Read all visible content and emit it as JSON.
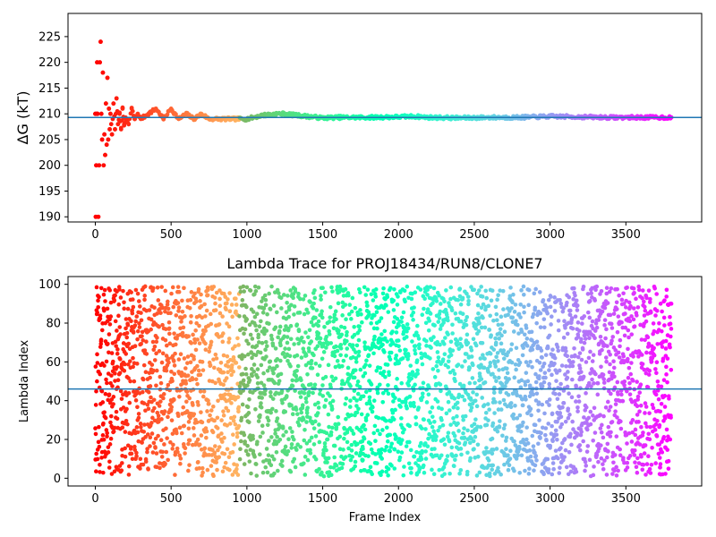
{
  "chart_data": [
    {
      "type": "scatter",
      "title": "",
      "xlabel": "",
      "ylabel": "ΔG (kT)",
      "xlim": [
        -180,
        4000
      ],
      "ylim": [
        189,
        229.5
      ],
      "xticks": [
        0,
        500,
        1000,
        1500,
        2000,
        2500,
        3000,
        3500
      ],
      "yticks": [
        190,
        195,
        200,
        205,
        210,
        215,
        220,
        225
      ],
      "reference_line": 209.3,
      "reference_line_color": "#1f77b4",
      "colormap": "rainbow (red at frame 0 → violet at last frame)",
      "series": [
        {
          "x": [
            0,
            3,
            6,
            9,
            12,
            15,
            20,
            25,
            30,
            35,
            40,
            45,
            50,
            55,
            60,
            65,
            70,
            75,
            80,
            85,
            90,
            95,
            100,
            110,
            120,
            130,
            140,
            150,
            160,
            170,
            180,
            190,
            200,
            220,
            240,
            260,
            280,
            300,
            350,
            400,
            450,
            500,
            550,
            600,
            650,
            700,
            750,
            800,
            900,
            1000,
            1100,
            1200,
            1250,
            1300,
            1400,
            1500,
            1600,
            1800,
            2000,
            2100,
            2200,
            2400,
            2600,
            2800,
            3000,
            3200,
            3400,
            3600,
            3800
          ],
          "y": [
            210,
            190,
            200,
            210,
            220,
            210,
            190,
            200,
            220,
            224,
            210,
            205,
            218,
            200,
            206,
            202,
            212,
            204,
            217,
            205,
            211,
            207,
            210,
            206,
            212,
            207,
            213,
            208,
            210,
            207,
            211,
            208,
            209,
            208,
            211,
            209,
            210,
            209,
            210,
            211,
            209,
            211,
            209,
            210,
            209,
            210,
            209,
            209,
            209,
            209,
            209.7,
            210,
            210,
            209.8,
            209.5,
            209.2,
            209.3,
            209.3,
            209.4,
            209.5,
            209.3,
            209.2,
            209.3,
            209.3,
            209.5,
            209.4,
            209.3,
            209.3,
            209.3
          ]
        }
      ]
    },
    {
      "type": "scatter",
      "title": "Lambda Trace for PROJ18434/RUN8/CLONE7",
      "xlabel": "Frame Index",
      "ylabel": "Lambda Index",
      "xlim": [
        -180,
        4000
      ],
      "ylim": [
        -4,
        104
      ],
      "xticks": [
        0,
        500,
        1000,
        1500,
        2000,
        2500,
        3000,
        3500
      ],
      "yticks": [
        0,
        20,
        40,
        60,
        80,
        100
      ],
      "reference_line": 46,
      "reference_line_color": "#1f77b4",
      "colormap": "rainbow (red at frame 0 → violet at last frame)",
      "point_count": 3800,
      "description": "",
      "x_range": [
        0,
        3800
      ],
      "y_range": [
        1,
        99
      ]
    }
  ]
}
